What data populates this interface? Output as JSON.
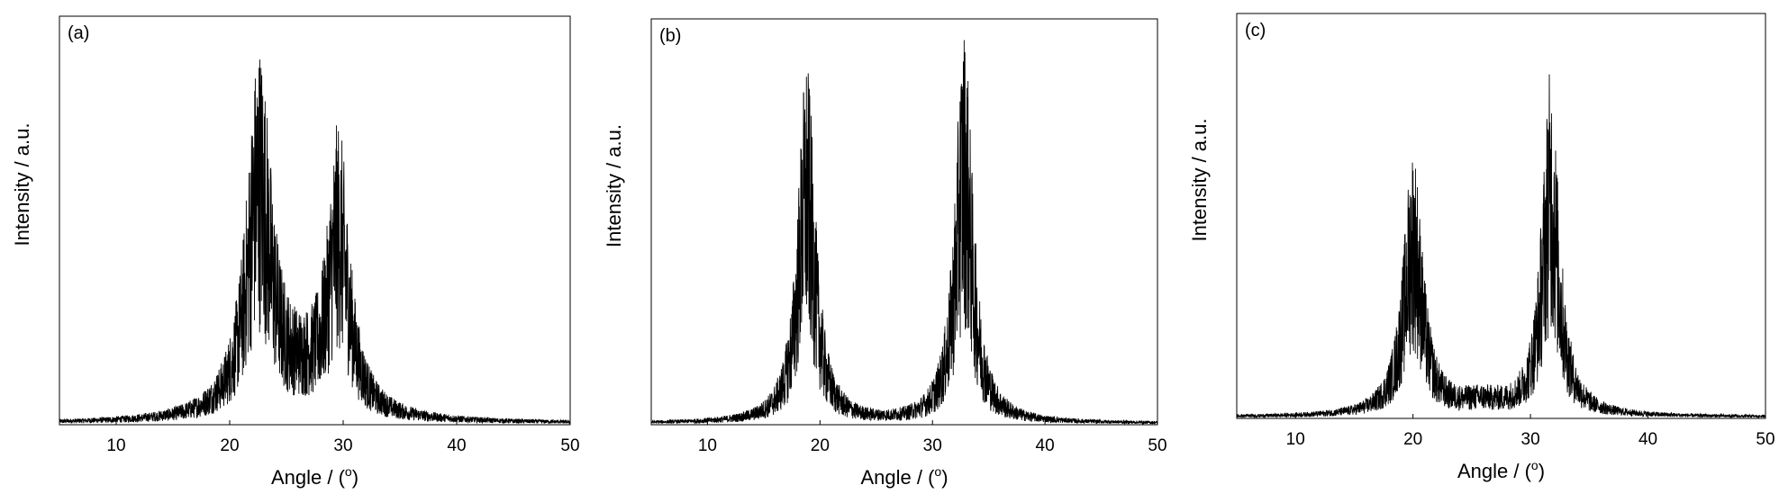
{
  "chart_data": [
    {
      "type": "line",
      "panel_label": "(a)",
      "xlabel": "Angle / (°)",
      "xlabel_parts": [
        "Angle / (",
        "o",
        ")"
      ],
      "ylabel": "Intensity / a.u.",
      "xlim": [
        5,
        50
      ],
      "ylim": [
        0,
        1
      ],
      "xticks": [
        10,
        20,
        30,
        40,
        50
      ],
      "y_tick_labels": false,
      "grid": false,
      "peaks": [
        {
          "center": 22.6,
          "height": 0.84,
          "width": 1.35
        },
        {
          "center": 29.6,
          "height": 0.63,
          "width": 1.15
        },
        {
          "center": 26.5,
          "height": 0.1,
          "width": 3.0
        }
      ]
    },
    {
      "type": "line",
      "panel_label": "(b)",
      "xlabel": "Angle / (°)",
      "xlabel_parts": [
        "Angle / (",
        "o",
        ")"
      ],
      "ylabel": "Intensity / a.u.",
      "xlim": [
        5,
        50
      ],
      "ylim": [
        0,
        1
      ],
      "xticks": [
        10,
        20,
        30,
        40,
        50
      ],
      "y_tick_labels": false,
      "grid": false,
      "peaks": [
        {
          "center": 18.8,
          "height": 0.85,
          "width": 0.95
        },
        {
          "center": 32.8,
          "height": 0.93,
          "width": 0.95
        }
      ]
    },
    {
      "type": "line",
      "panel_label": "(c)",
      "xlabel": "Angle / (°)",
      "xlabel_parts": [
        "Angle / (",
        "o",
        ")"
      ],
      "ylabel": "Intensity / a.u.",
      "xlim": [
        5,
        50
      ],
      "ylim": [
        0,
        1
      ],
      "xticks": [
        10,
        20,
        30,
        40,
        50
      ],
      "y_tick_labels": false,
      "grid": false,
      "peaks": [
        {
          "center": 20.0,
          "height": 0.63,
          "width": 1.0
        },
        {
          "center": 31.7,
          "height": 0.81,
          "width": 0.9
        },
        {
          "center": 25.8,
          "height": 0.04,
          "width": 2.5
        }
      ]
    }
  ]
}
